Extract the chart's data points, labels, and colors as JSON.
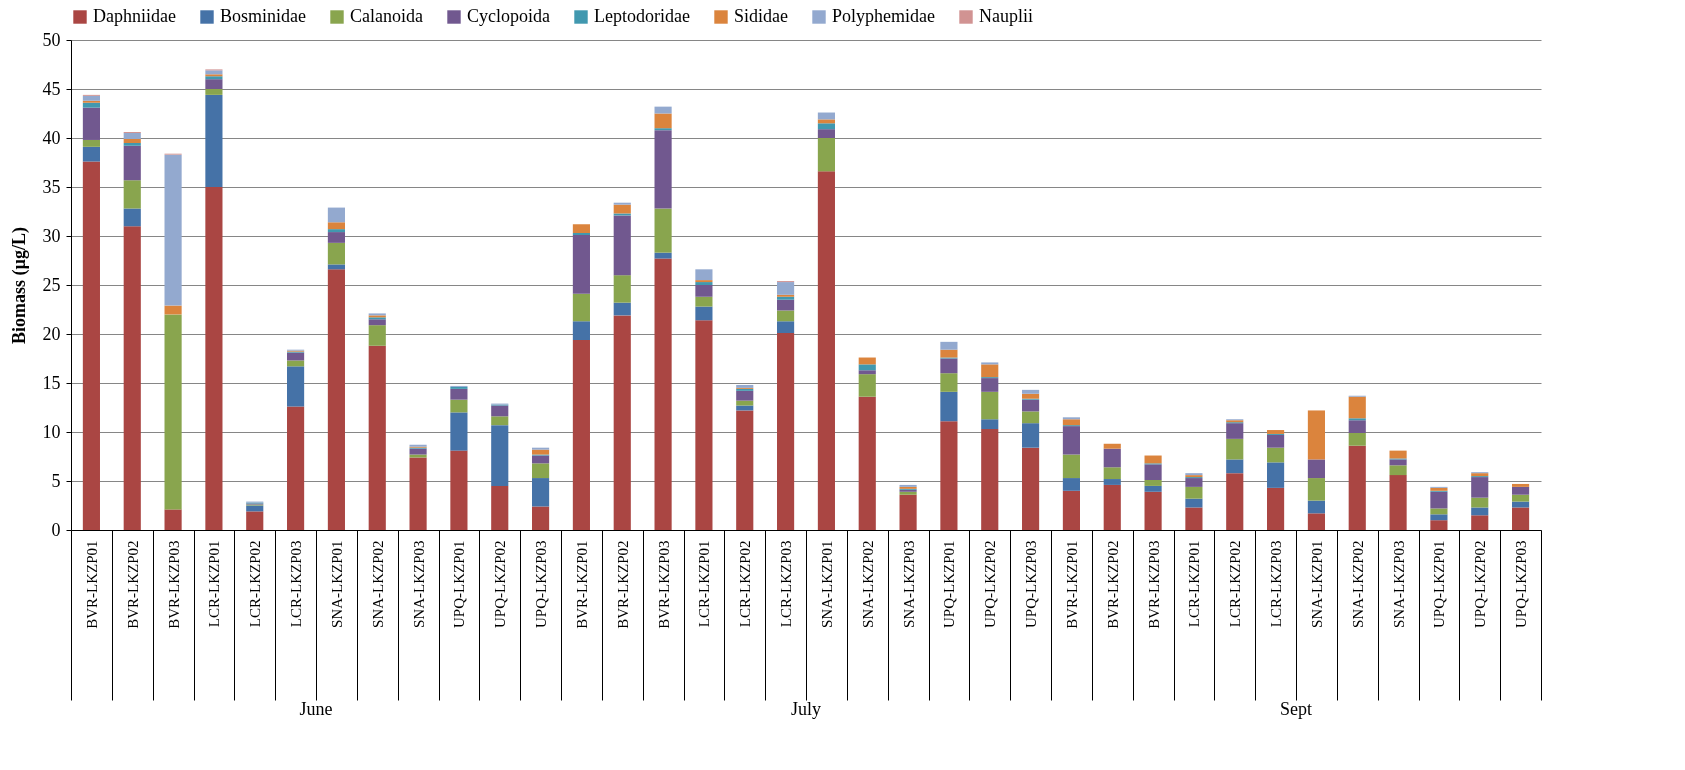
{
  "chart_data": {
    "type": "bar",
    "stacked": true,
    "ylabel": "Biomass (µg/L)",
    "categories": [
      "BVR-LKZP01",
      "BVR-LKZP02",
      "BVR-LKZP03",
      "LCR-LKZP01",
      "LCR-LKZP02",
      "LCR-LKZP03",
      "SNA-LKZP01",
      "SNA-LKZP02",
      "SNA-LKZP03",
      "UPQ-LKZP01",
      "UPQ-LKZP02",
      "UPQ-LKZP03",
      "BVR-LKZP01",
      "BVR-LKZP02",
      "BVR-LKZP03",
      "LCR-LKZP01",
      "LCR-LKZP02",
      "LCR-LKZP03",
      "SNA-LKZP01",
      "SNA-LKZP02",
      "SNA-LKZP03",
      "UPQ-LKZP01",
      "UPQ-LKZP02",
      "UPQ-LKZP03",
      "BVR-LKZP01",
      "BVR-LKZP02",
      "BVR-LKZP03",
      "LCR-LKZP01",
      "LCR-LKZP02",
      "LCR-LKZP03",
      "SNA-LKZP01",
      "SNA-LKZP02",
      "SNA-LKZP03",
      "UPQ-LKZP01",
      "UPQ-LKZP02",
      "UPQ-LKZP03"
    ],
    "series": [
      {
        "name": "Daphniidae",
        "color": "#aa4643",
        "values": [
          37.6,
          31.0,
          2.1,
          35.0,
          1.9,
          12.6,
          26.6,
          18.8,
          7.4,
          8.1,
          4.5,
          2.4,
          19.4,
          21.9,
          27.7,
          21.4,
          12.2,
          20.1,
          36.6,
          13.6,
          3.6,
          11.1,
          10.3,
          8.4,
          4.0,
          4.6,
          3.9,
          2.3,
          5.8,
          4.3,
          1.7,
          8.6,
          5.6,
          1.0,
          1.5,
          2.3
        ]
      },
      {
        "name": "Bosminidae",
        "color": "#4572a7",
        "values": [
          1.5,
          1.8,
          0,
          9.4,
          0.6,
          4.1,
          0.5,
          0,
          null,
          3.9,
          6.2,
          2.9,
          1.9,
          1.3,
          0.6,
          1.4,
          0.5,
          1.2,
          0,
          0,
          0,
          3.0,
          1.0,
          2.5,
          1.3,
          0.6,
          0.6,
          0.9,
          1.4,
          2.6,
          1.3,
          0,
          0,
          0.6,
          0.8,
          0.6
        ]
      },
      {
        "name": "Calanoida",
        "color": "#89a54e",
        "values": [
          0.7,
          2.9,
          19.9,
          0.6,
          0.1,
          0.6,
          2.2,
          2.1,
          0.3,
          1.3,
          0.9,
          1.5,
          2.8,
          2.8,
          4.5,
          1.0,
          0.5,
          1.1,
          3.4,
          2.3,
          0.3,
          1.9,
          2.8,
          1.2,
          2.4,
          1.2,
          0.6,
          1.2,
          2.1,
          1.5,
          2.3,
          1.3,
          1.0,
          0.6,
          1.0,
          0.7
        ]
      },
      {
        "name": "Cyclopoida",
        "color": "#71588f",
        "values": [
          3.3,
          3.5,
          0,
          1.0,
          0.1,
          0.8,
          1.1,
          0.6,
          0.6,
          1.1,
          1.1,
          0.8,
          6.0,
          6.1,
          8.0,
          1.2,
          1.0,
          1.1,
          0.9,
          0.4,
          0.2,
          1.5,
          1.4,
          1.2,
          2.9,
          1.9,
          1.6,
          0.9,
          1.6,
          1.3,
          1.9,
          1.3,
          0.6,
          1.7,
          2.1,
          0.8
        ]
      },
      {
        "name": "Leptodoridae",
        "color": "#4198af",
        "values": [
          0.5,
          0.3,
          0,
          0.3,
          0.1,
          0.1,
          0.3,
          0.2,
          0.1,
          0.2,
          0.1,
          0.1,
          0.2,
          0.2,
          0.2,
          0.3,
          0.2,
          0.3,
          0.6,
          0.6,
          0.1,
          0.1,
          0.1,
          0.1,
          0.1,
          0,
          0.1,
          0.1,
          0.1,
          0.1,
          0,
          0.2,
          0.1,
          0.1,
          0.1,
          0
        ]
      },
      {
        "name": "Sididae",
        "color": "#db843d",
        "values": [
          0.2,
          0.4,
          0.9,
          0.2,
          0,
          0.1,
          0.7,
          0.2,
          0.1,
          0,
          0,
          0.5,
          0.9,
          0.9,
          1.5,
          0.2,
          0.1,
          0.2,
          0.4,
          0.7,
          0.2,
          0.8,
          1.3,
          0.5,
          0.6,
          0.5,
          0.8,
          0.2,
          0.2,
          0.4,
          5.0,
          2.2,
          0.8,
          0.3,
          0.3,
          0.3
        ]
      },
      {
        "name": "Polyphemidae",
        "color": "#93a9cf",
        "values": [
          0.5,
          0.6,
          15.4,
          0.4,
          0.1,
          0.1,
          1.5,
          0.2,
          0.2,
          0.1,
          0.1,
          0.2,
          0,
          0.2,
          0.7,
          1.1,
          0.3,
          1.3,
          0.7,
          0,
          0.2,
          0.8,
          0.2,
          0.4,
          0.2,
          0,
          0,
          0.2,
          0.1,
          0,
          0,
          0.1,
          0,
          0.1,
          0.1,
          0
        ]
      },
      {
        "name": "Nauplii",
        "color": "#d19392",
        "values": [
          0.1,
          0.1,
          0.1,
          0.1,
          0,
          0,
          0,
          0,
          0,
          0,
          0,
          0,
          0,
          0,
          0,
          0,
          0,
          0.1,
          0,
          0,
          0,
          0,
          0,
          0,
          0,
          0,
          0,
          0,
          0,
          0,
          0,
          0,
          0,
          0,
          0,
          0
        ]
      }
    ],
    "ylim": [
      0,
      50
    ],
    "yticks": [
      0,
      5,
      10,
      15,
      20,
      25,
      30,
      35,
      40,
      45,
      50
    ],
    "grid": "y",
    "legend": "top",
    "annotations": [
      "June",
      "July",
      "Sept"
    ]
  }
}
